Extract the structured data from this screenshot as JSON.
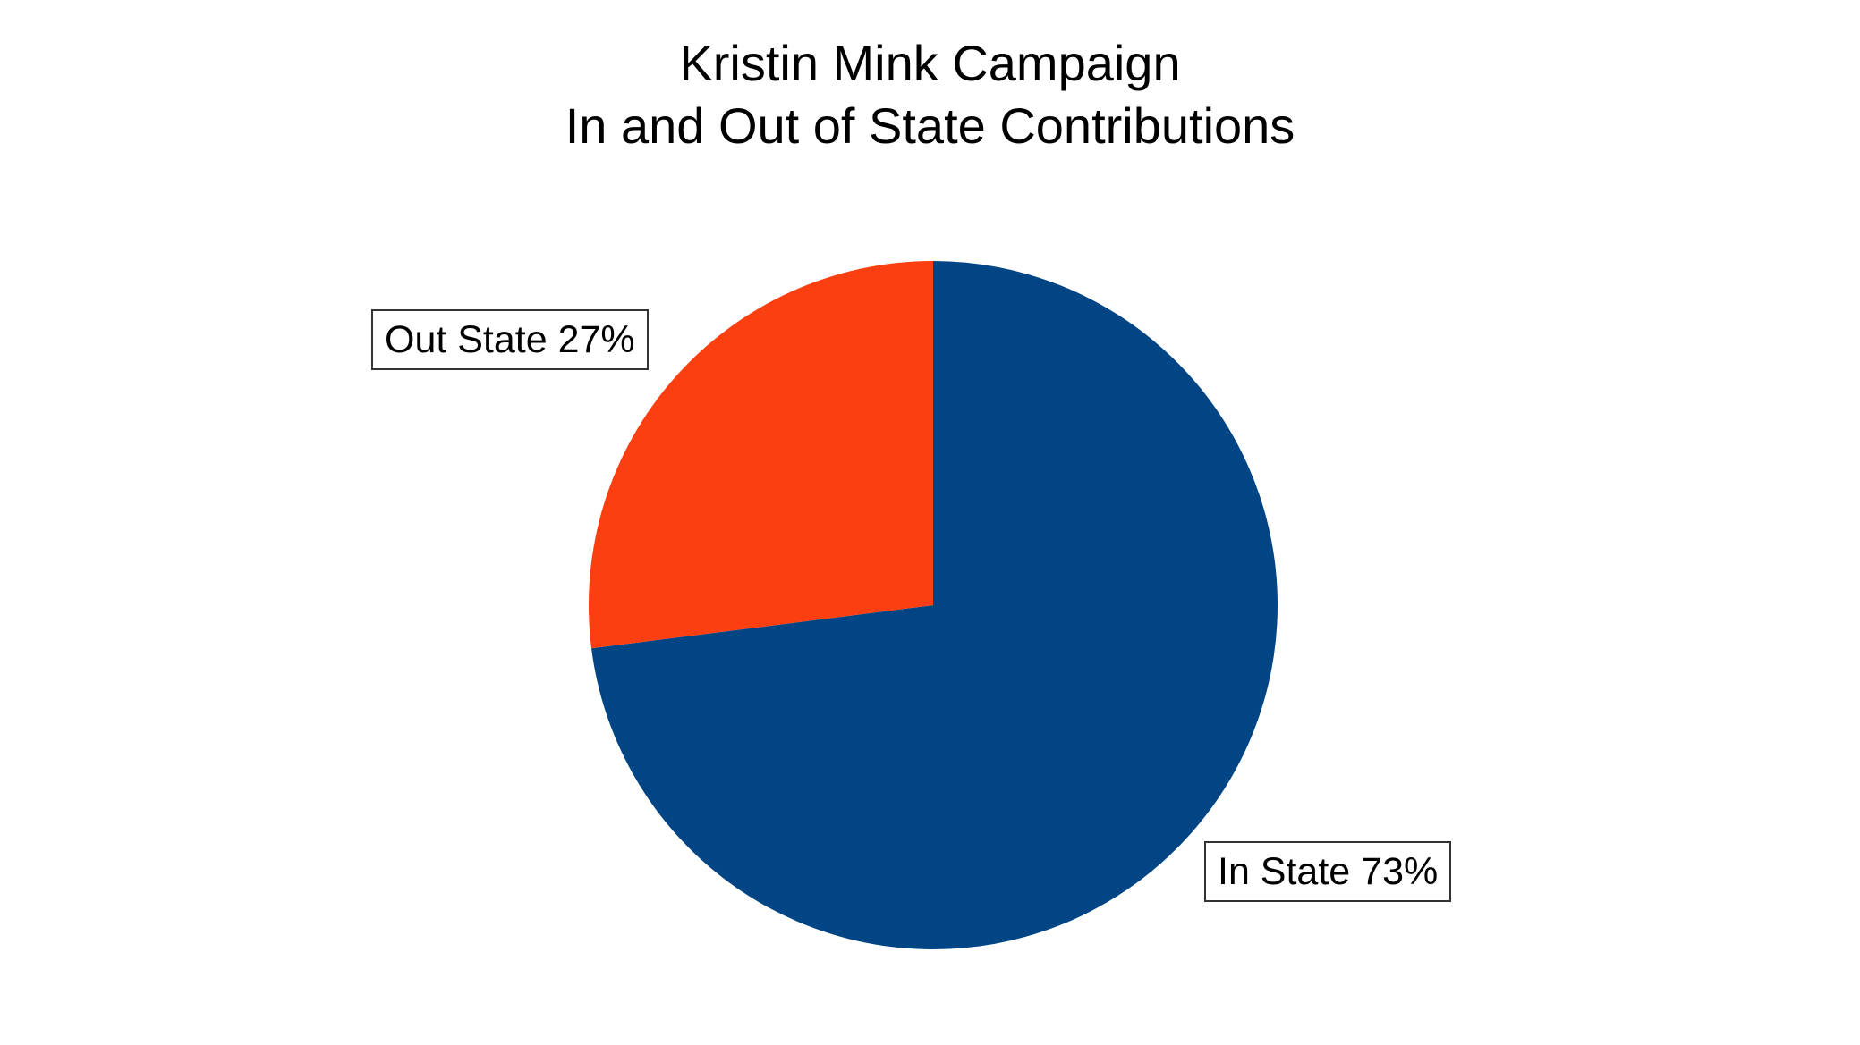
{
  "chart_data": {
    "type": "pie",
    "title": "Kristin Mink Campaign",
    "subtitle": "In and Out of State Contributions",
    "slices": [
      {
        "label": "In State 73%",
        "value": 73,
        "color": "#024585"
      },
      {
        "label": "Out State 27%",
        "value": 27,
        "color": "#FC3F11"
      }
    ]
  }
}
